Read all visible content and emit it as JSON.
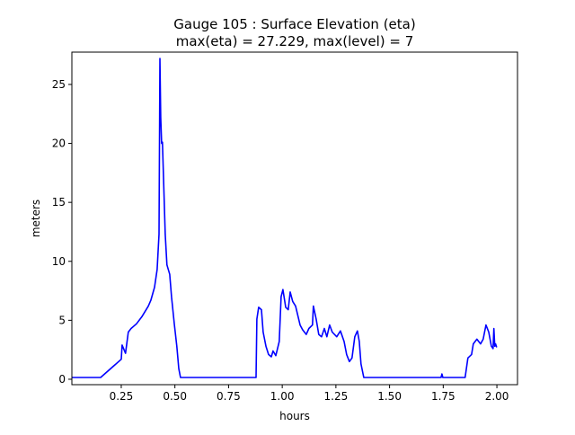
{
  "chart_data": {
    "type": "line",
    "title_line1": "Gauge 105 : Surface Elevation (eta)",
    "title_line2": "max(eta) =  27.229,    max(level) = 7",
    "xlabel": "hours",
    "ylabel": "meters",
    "xlim": [
      0.02,
      2.096
    ],
    "ylim": [
      -0.46,
      27.74
    ],
    "xticks": [
      0.25,
      0.5,
      0.75,
      1.0,
      1.25,
      1.5,
      1.75,
      2.0
    ],
    "xtick_labels": [
      "0.25",
      "0.50",
      "0.75",
      "1.00",
      "1.25",
      "1.50",
      "1.75",
      "2.00"
    ],
    "yticks": [
      0,
      5,
      10,
      15,
      20,
      25
    ],
    "ytick_labels": [
      "0",
      "5",
      "10",
      "15",
      "20",
      "25"
    ],
    "grid": false,
    "series": [
      {
        "name": "eta",
        "color": "#0000ff",
        "x": [
          0.02,
          0.154,
          0.25,
          0.254,
          0.27,
          0.283,
          0.296,
          0.321,
          0.346,
          0.376,
          0.388,
          0.405,
          0.417,
          0.426,
          0.43,
          0.434,
          0.438,
          0.442,
          0.455,
          0.463,
          0.476,
          0.484,
          0.497,
          0.509,
          0.518,
          0.526,
          0.878,
          0.882,
          0.89,
          0.903,
          0.911,
          0.924,
          0.936,
          0.949,
          0.957,
          0.97,
          0.986,
          0.995,
          1.003,
          1.016,
          1.028,
          1.037,
          1.049,
          1.062,
          1.083,
          1.095,
          1.112,
          1.124,
          1.141,
          1.145,
          1.158,
          1.17,
          1.183,
          1.196,
          1.208,
          1.221,
          1.233,
          1.254,
          1.271,
          1.288,
          1.3,
          1.313,
          1.325,
          1.338,
          1.35,
          1.359,
          1.367,
          1.38,
          1.74,
          1.744,
          1.748,
          1.852,
          1.865,
          1.882,
          1.89,
          1.907,
          1.924,
          1.936,
          1.949,
          1.962,
          1.974,
          1.982,
          1.986,
          1.99,
          1.994,
          1.999
        ],
        "y": [
          0.15,
          0.15,
          1.7,
          2.9,
          2.2,
          4.0,
          4.3,
          4.7,
          5.3,
          6.2,
          6.7,
          7.8,
          9.3,
          12.3,
          27.2,
          22.2,
          20.0,
          20.1,
          12.3,
          9.7,
          8.9,
          7.0,
          4.7,
          2.8,
          0.9,
          0.15,
          0.15,
          5.1,
          6.1,
          5.9,
          4.0,
          2.8,
          2.1,
          1.9,
          2.4,
          2.0,
          3.2,
          7.0,
          7.6,
          6.1,
          5.9,
          7.4,
          6.6,
          6.2,
          4.6,
          4.2,
          3.8,
          4.3,
          4.6,
          6.2,
          5.1,
          3.8,
          3.6,
          4.3,
          3.6,
          4.6,
          4.0,
          3.6,
          4.1,
          3.2,
          2.1,
          1.5,
          1.8,
          3.6,
          4.1,
          3.2,
          1.3,
          0.15,
          0.15,
          0.45,
          0.15,
          0.15,
          1.8,
          2.1,
          3.0,
          3.4,
          3.0,
          3.4,
          4.6,
          4.0,
          2.8,
          2.6,
          4.3,
          2.8,
          3.0,
          2.7
        ]
      }
    ]
  }
}
